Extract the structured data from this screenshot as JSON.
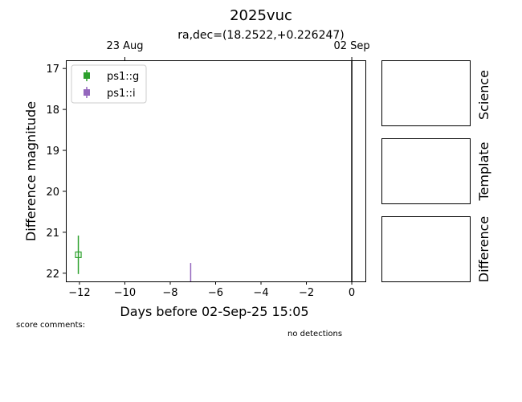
{
  "chart_data": {
    "type": "scatter",
    "title": "2025vuc",
    "subtitle": "ra,dec=(18.2522,+0.226247)",
    "xlabel": "Days before 02-Sep-25 15:05",
    "ylabel": "Difference magnitude",
    "xlim": [
      -12.6,
      0.6
    ],
    "ylim": [
      22.2,
      16.8
    ],
    "y_inverted": true,
    "x_ticks": [
      -12,
      -10,
      -8,
      -6,
      -4,
      -2,
      0
    ],
    "x_tick_labels": [
      "−12",
      "−10",
      "−8",
      "−6",
      "−4",
      "−2",
      "0"
    ],
    "y_ticks": [
      17,
      18,
      19,
      20,
      21,
      22
    ],
    "y_tick_labels": [
      "17",
      "18",
      "19",
      "20",
      "21",
      "22"
    ],
    "top_axis": {
      "ticks": [
        -10.0,
        0.0
      ],
      "labels": [
        "23 Aug",
        "02 Sep"
      ]
    },
    "vertical_line": {
      "x": 0.0,
      "color": "#000000"
    },
    "legend": {
      "placement": "top-left"
    },
    "series": [
      {
        "name": "ps1::g",
        "color": "#2ca02c",
        "points": [
          {
            "x": -12.05,
            "y": 21.55,
            "yerr_low": 0.47,
            "yerr_high": 0.47,
            "marker": "open-square"
          }
        ]
      },
      {
        "name": "ps1::i",
        "color": "#9467bd",
        "points": [
          {
            "x": -7.1,
            "y": 22.45,
            "yerr_low": 0.7,
            "yerr_high": 0.7,
            "marker": "none"
          }
        ]
      }
    ]
  },
  "stamps": [
    {
      "label": "Science"
    },
    {
      "label": "Template"
    },
    {
      "label": "Difference"
    }
  ],
  "notes": {
    "score_comments": "score comments:",
    "detections": "no detections"
  }
}
